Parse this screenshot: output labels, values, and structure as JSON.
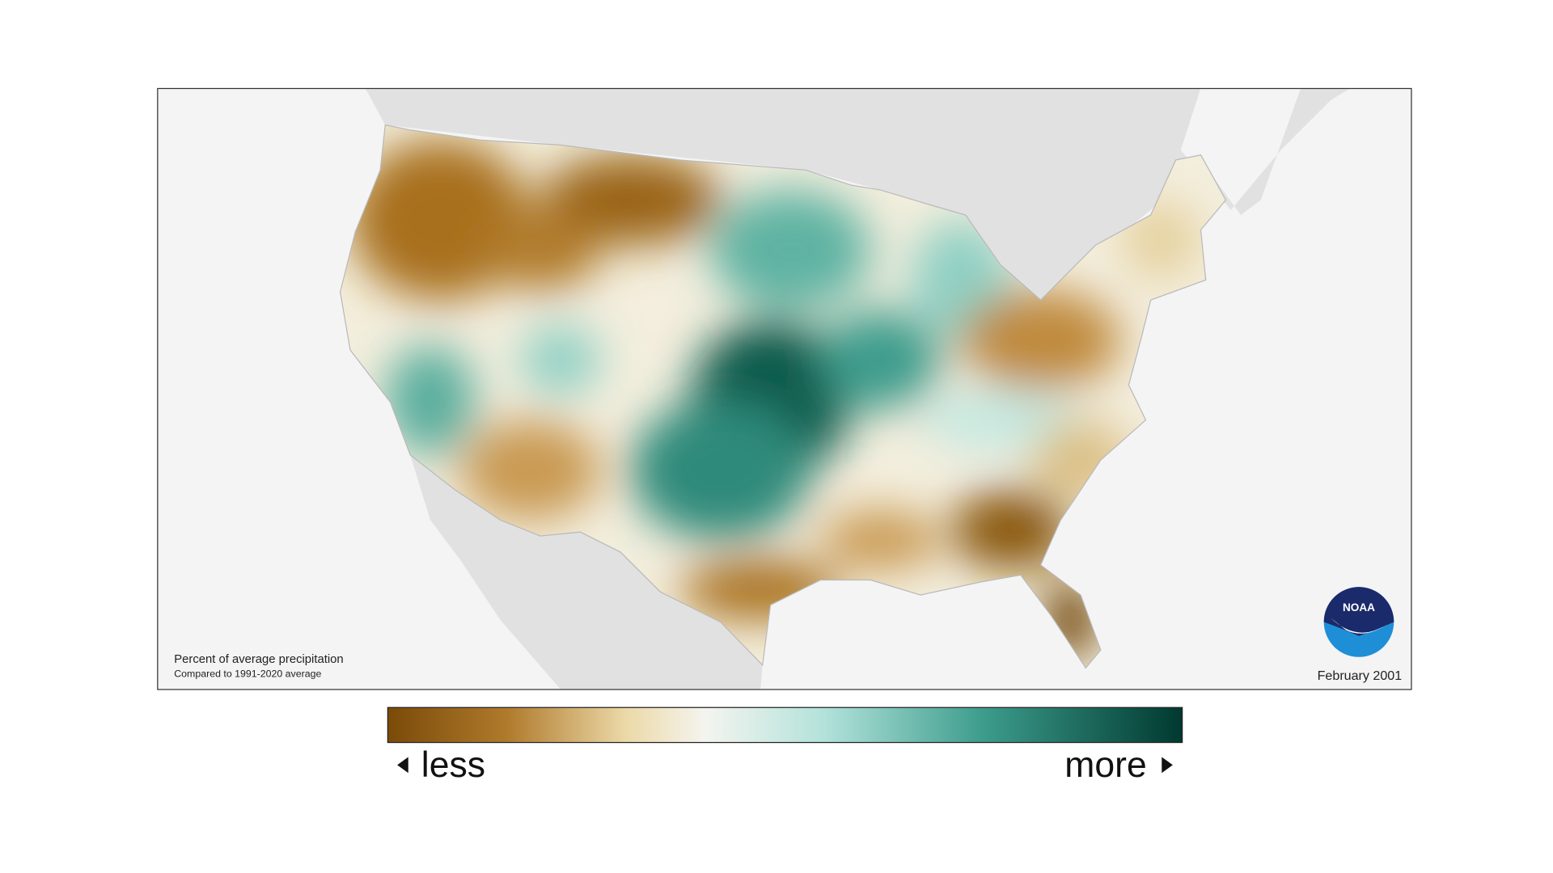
{
  "map": {
    "caption": {
      "title": "Percent of average precipitation",
      "subtitle": "Compared to 1991-2020 average"
    },
    "date": "February 2001",
    "logo": "NOAA"
  },
  "legend": {
    "low": "less",
    "high": "more"
  }
}
